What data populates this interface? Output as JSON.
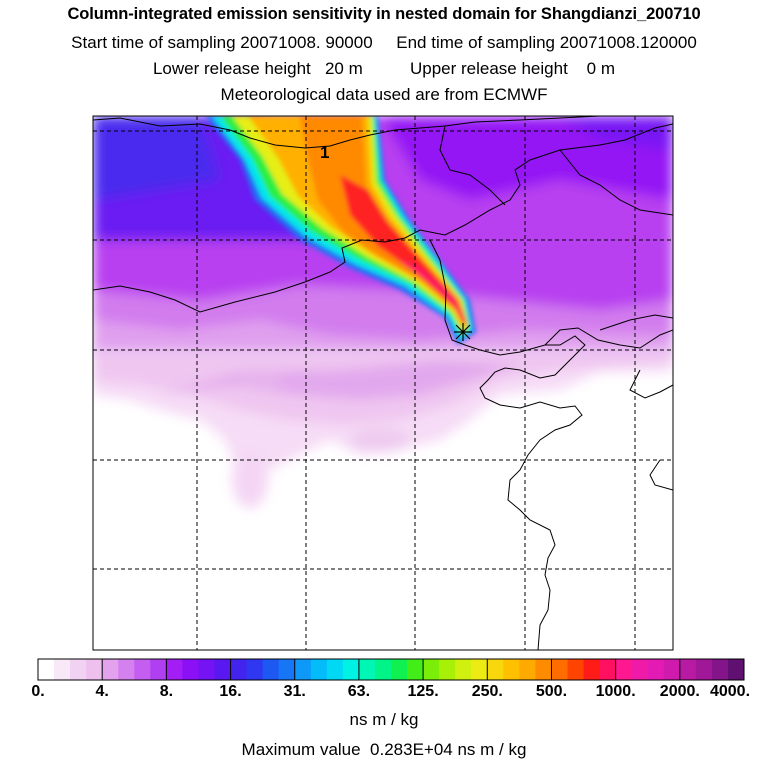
{
  "titles": {
    "main": "Column-integrated emission sensitivity in nested domain for Shangdianzi_200710",
    "line2": "Start time of sampling 20071008. 90000     End time of sampling 20071008.120000",
    "line3": "Lower release height   20 m          Upper release height    0 m",
    "line4": "Meteorological data used are from ECMWF"
  },
  "map": {
    "contour_label": "1",
    "receptor_marker": "receptor-cross"
  },
  "colorbar": {
    "labels": [
      "0.",
      "4.",
      "8.",
      "16.",
      "31.",
      "63.",
      "125.",
      "250.",
      "500.",
      "1000.",
      "2000.",
      "4000."
    ],
    "colors": [
      "#ffffff",
      "#f8e8f8",
      "#f2d2f2",
      "#eec0ee",
      "#e3a2ee",
      "#d480ee",
      "#c45ef0",
      "#b13ff2",
      "#a21ef5",
      "#8c10f5",
      "#7414f5",
      "#5a18f0",
      "#4224ee",
      "#2f38f0",
      "#1e58f2",
      "#1676f6",
      "#0e98f8",
      "#05bcfa",
      "#00d8f4",
      "#00f2e4",
      "#00f6b4",
      "#00f488",
      "#10f050",
      "#42ee18",
      "#7aee08",
      "#a8f008",
      "#d0f010",
      "#ecec14",
      "#f8d80c",
      "#ffc000",
      "#ffaa00",
      "#ff8c00",
      "#ff6c00",
      "#ff4400",
      "#ff1c18",
      "#ff1060",
      "#ff1890",
      "#f01aa8",
      "#e41ab4",
      "#d01aae",
      "#b81aa4",
      "#a01898",
      "#84148a",
      "#601070"
    ],
    "units": "ns m / kg"
  },
  "footer": {
    "max_value": "Maximum value  0.283E+04 ns m / kg"
  }
}
